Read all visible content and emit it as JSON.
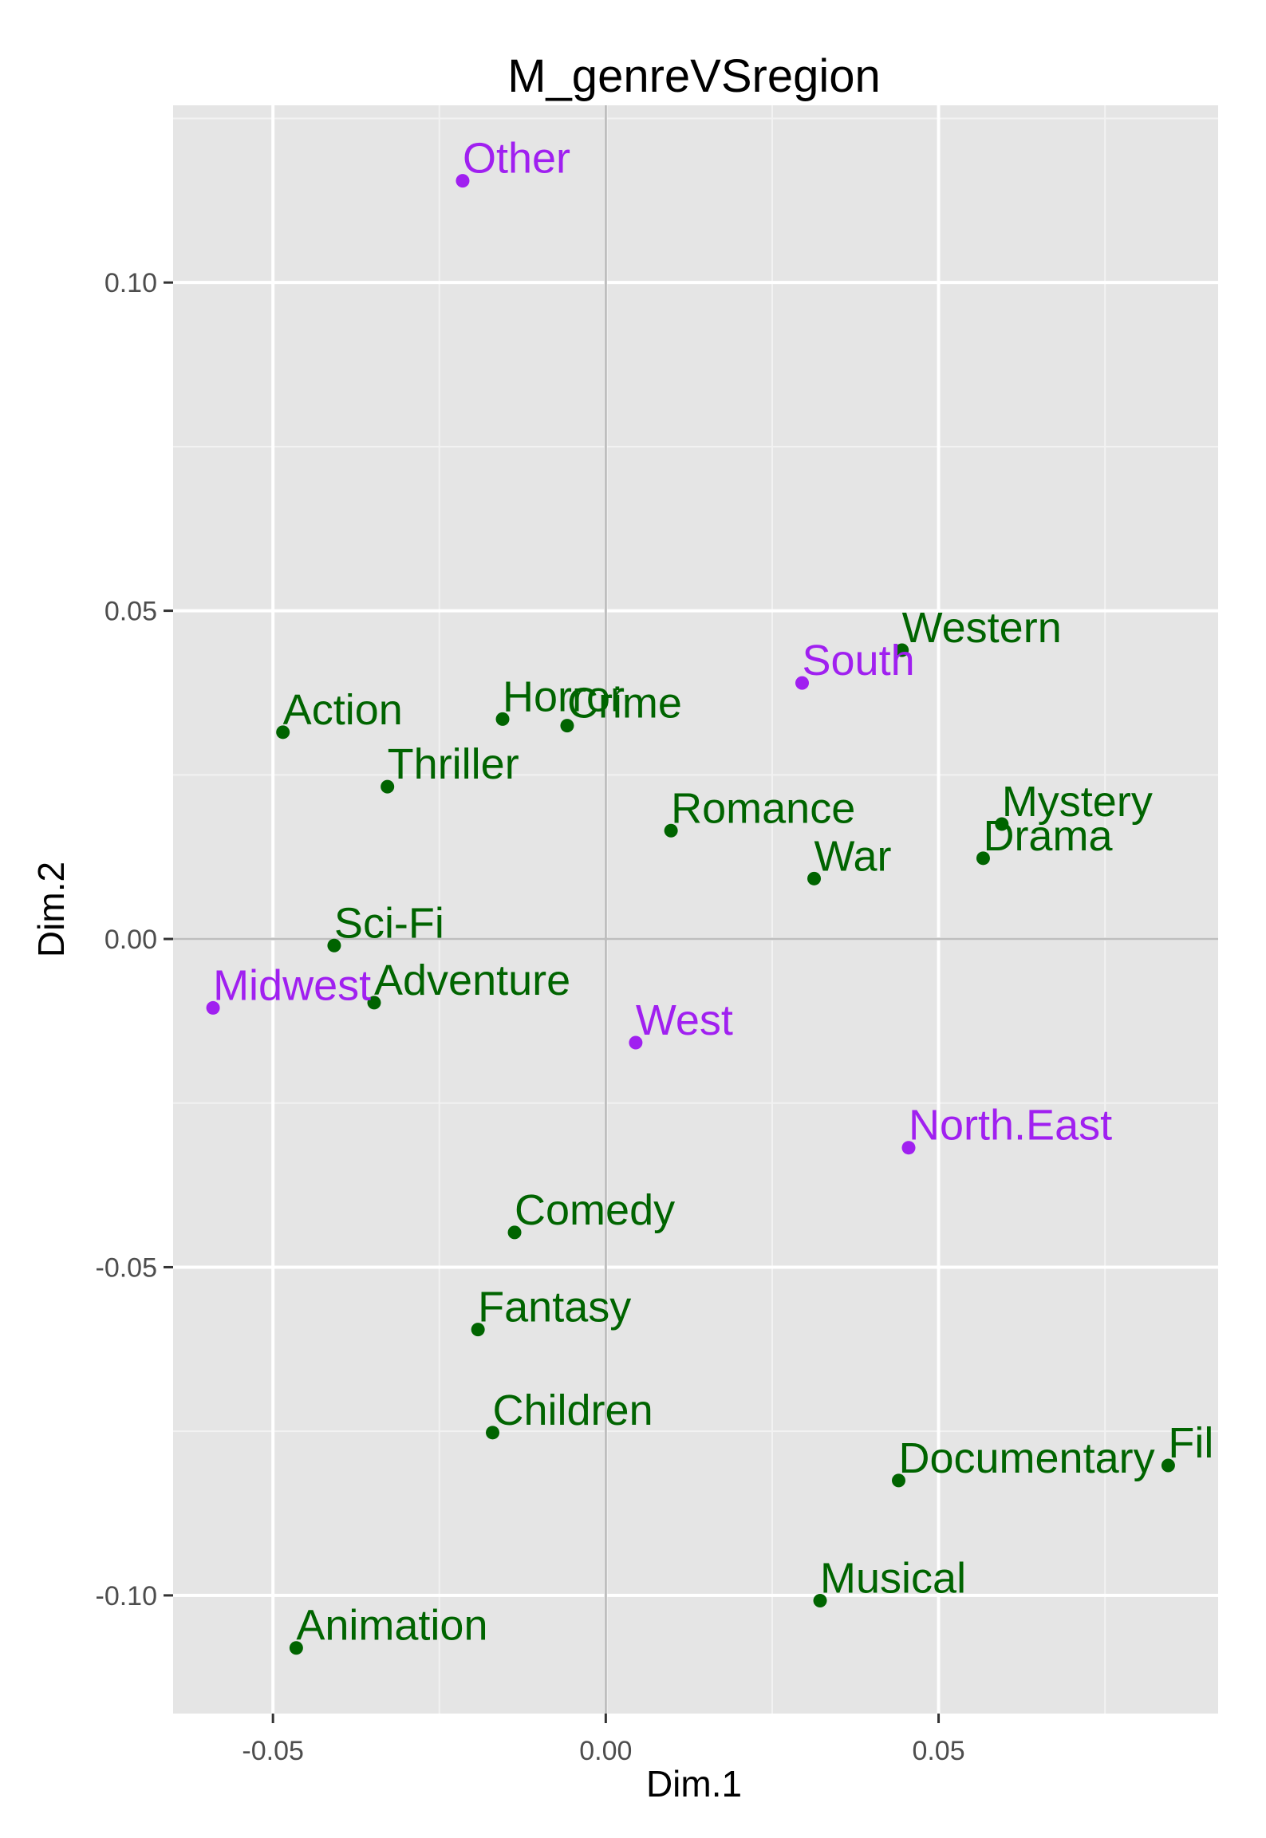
{
  "chart_data": {
    "type": "scatter",
    "title": "M_genreVSregion",
    "xlabel": "Dim.1",
    "ylabel": "Dim.2",
    "xlim": [
      -0.065,
      0.092
    ],
    "ylim": [
      -0.118,
      0.127
    ],
    "x_ticks": [
      -0.05,
      0.0,
      0.05
    ],
    "x_tick_labels": [
      "-0.05",
      "0.00",
      "0.05"
    ],
    "y_ticks": [
      -0.1,
      -0.05,
      0.0,
      0.05,
      0.1
    ],
    "y_tick_labels": [
      "-0.10",
      "-0.05",
      "0.00",
      "0.05",
      "0.10"
    ],
    "grid": true,
    "reference_lines": {
      "x": 0,
      "y": 0
    },
    "colors": {
      "genre": "#006400",
      "region": "#A020F0",
      "panel": "#E5E5E5",
      "grid_major": "#FFFFFF",
      "grid_minor": "#F2F2F2",
      "reference": "#BEBEBE"
    },
    "series": [
      {
        "group": "genre",
        "color": "#006400",
        "points": [
          {
            "label": "Action",
            "x": -0.0485,
            "y": 0.0315
          },
          {
            "label": "Horror",
            "x": -0.0155,
            "y": 0.0335
          },
          {
            "label": "Crime",
            "x": -0.0058,
            "y": 0.0325
          },
          {
            "label": "Thriller",
            "x": -0.0328,
            "y": 0.0232
          },
          {
            "label": "Western",
            "x": 0.0445,
            "y": 0.044
          },
          {
            "label": "Romance",
            "x": 0.0098,
            "y": 0.0165
          },
          {
            "label": "Mystery",
            "x": 0.0595,
            "y": 0.0175
          },
          {
            "label": "Drama",
            "x": 0.0567,
            "y": 0.0123
          },
          {
            "label": "War",
            "x": 0.0313,
            "y": 0.0092
          },
          {
            "label": "Sci-Fi",
            "x": -0.0408,
            "y": -0.001
          },
          {
            "label": "Adventure",
            "x": -0.0348,
            "y": -0.0097
          },
          {
            "label": "Comedy",
            "x": -0.0137,
            "y": -0.0447
          },
          {
            "label": "Fantasy",
            "x": -0.0192,
            "y": -0.0595
          },
          {
            "label": "Children",
            "x": -0.017,
            "y": -0.0752
          },
          {
            "label": "Documentary",
            "x": 0.044,
            "y": -0.0825
          },
          {
            "label": "Fil",
            "x": 0.0845,
            "y": -0.0802
          },
          {
            "label": "Musical",
            "x": 0.0322,
            "y": -0.1008
          },
          {
            "label": "Animation",
            "x": -0.0465,
            "y": -0.108
          }
        ]
      },
      {
        "group": "region",
        "color": "#A020F0",
        "points": [
          {
            "label": "Other",
            "x": -0.0215,
            "y": 0.1155
          },
          {
            "label": "South",
            "x": 0.0295,
            "y": 0.039
          },
          {
            "label": "Midwest",
            "x": -0.059,
            "y": -0.0105
          },
          {
            "label": "West",
            "x": 0.0045,
            "y": -0.0158
          },
          {
            "label": "North.East",
            "x": 0.0455,
            "y": -0.0318
          }
        ]
      }
    ]
  }
}
